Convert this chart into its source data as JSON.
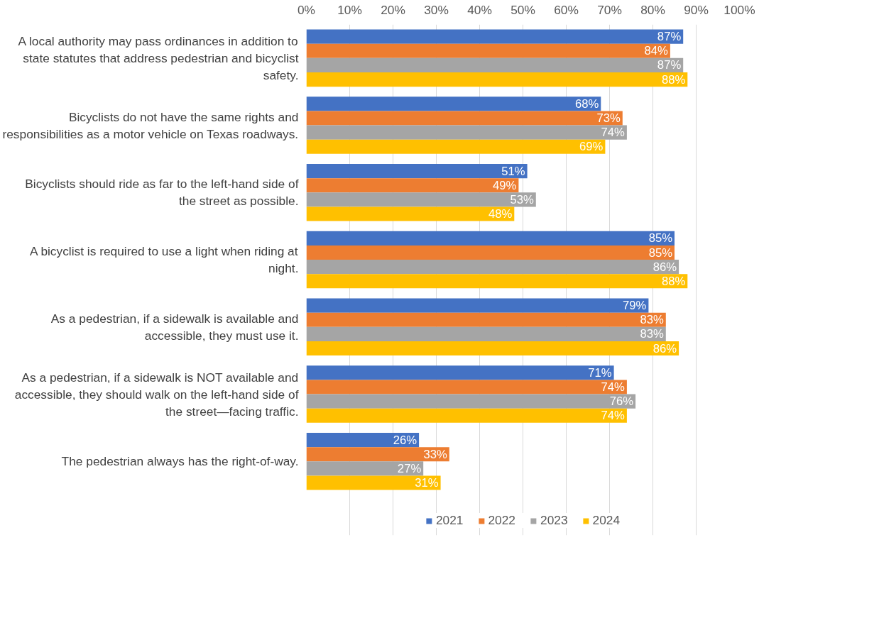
{
  "chart_data": {
    "type": "bar",
    "orientation": "horizontal",
    "categories": [
      "A local authority may pass ordinances in addition to state statutes that address pedestrian and bicyclist safety.",
      "Bicyclists do not have the same rights and responsibilities as a motor vehicle on Texas roadways.",
      "Bicyclists should ride as far to the left-hand side of the street as possible.",
      "A bicyclist is required to use a light when riding at night.",
      "As a pedestrian, if a sidewalk is available and accessible, they must use it.",
      "As a pedestrian, if a sidewalk is NOT available and accessible, they should walk on the left-hand side of the street—facing traffic.",
      "The pedestrian always has the right-of-way."
    ],
    "series": [
      {
        "name": "2021",
        "color": "#4472c4",
        "values": [
          87,
          68,
          51,
          85,
          79,
          71,
          26
        ],
        "value_labels": [
          "87%",
          "68%",
          "51%",
          "85%",
          "79%",
          "71%",
          "26%"
        ]
      },
      {
        "name": "2022",
        "color": "#ed7d31",
        "values": [
          84,
          73,
          49,
          85,
          83,
          74,
          33
        ],
        "value_labels": [
          "84%",
          "73%",
          "49%",
          "85%",
          "83%",
          "74%",
          "33%"
        ]
      },
      {
        "name": "2023",
        "color": "#a5a5a5",
        "values": [
          87,
          74,
          53,
          86,
          83,
          76,
          27
        ],
        "value_labels": [
          "87%",
          "74%",
          "53%",
          "86%",
          "83%",
          "76%",
          "27%"
        ]
      },
      {
        "name": "2024",
        "color": "#ffc000",
        "values": [
          88,
          69,
          48,
          88,
          86,
          74,
          31
        ],
        "value_labels": [
          "88%",
          "69%",
          "48%",
          "88%",
          "86%",
          "74%",
          "31%"
        ]
      }
    ],
    "xlim": [
      0,
      100
    ],
    "xticks": [
      {
        "value": 0,
        "label": "0%"
      },
      {
        "value": 10,
        "label": "10%"
      },
      {
        "value": 20,
        "label": "20%"
      },
      {
        "value": 30,
        "label": "30%"
      },
      {
        "value": 40,
        "label": "40%"
      },
      {
        "value": 50,
        "label": "50%"
      },
      {
        "value": 60,
        "label": "60%"
      },
      {
        "value": 70,
        "label": "70%"
      },
      {
        "value": 80,
        "label": "80%"
      },
      {
        "value": 90,
        "label": "90%"
      },
      {
        "value": 100,
        "label": "100%"
      }
    ],
    "grid": "x",
    "legend": "bottom"
  }
}
